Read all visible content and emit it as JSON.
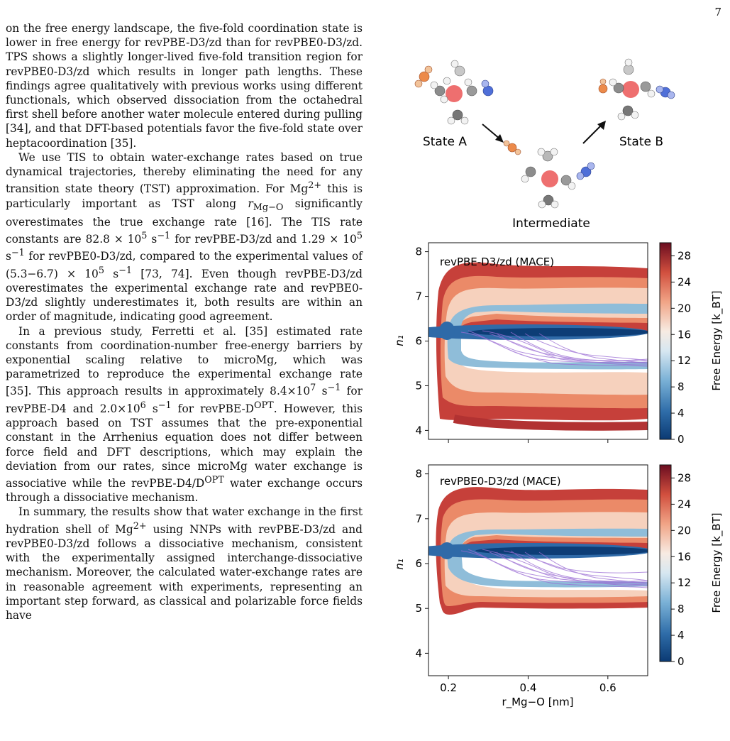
{
  "page_number": "7",
  "paragraphs": [
    "on the free energy landscape, the five-fold coordination state is lower in free energy for revPBE-D3/zd than for revPBE0-D3/zd. TPS shows a slightly longer-lived five-fold transition region for revPBE0-D3/zd which results in longer path lengths. These findings agree qualitatively with previous works using different functionals, which observed dissociation from the octahedral first shell before another water molecule entered during pulling [34], and that DFT-based potentials favor the five-fold state over heptacoordination [35].",
    "We use TIS to obtain water-exchange rates based on true dynamical trajectories, thereby eliminating the need for any transition state theory (TST) approximation. For Mg²⁺ this is particularly important as TST along r_Mg−O significantly overestimates the true exchange rate [16]. The TIS rate constants are 82.8 × 10⁵ s⁻¹ for revPBE-D3/zd and 1.29 × 10⁵ s⁻¹ for revPBE0-D3/zd, compared to the experimental values of (5.3−6.7) × 10⁵ s⁻¹ [73, 74]. Even though revPBE-D3/zd overestimates the experimental exchange rate and revPBE0-D3/zd slightly underestimates it, both results are within an order of magnitude, indicating good agreement.",
    "In a previous study, Ferretti et al. [35] estimated rate constants from coordination-number free-energy barriers by exponential scaling relative to microMg, which was parametrized to reproduce the experimental exchange rate [35]. This approach results in approximately 8.4×10⁷ s⁻¹ for revPBE-D4 and 2.0×10⁶ s⁻¹ for revPBE-D^OPT. However, this approach based on TST assumes that the pre-exponential constant in the Arrhenius equation does not differ between force field and DFT descriptions, which may explain the deviation from our rates, since microMg water exchange is associative while the revPBE-D4/D^OPT water exchange occurs through a dissociative mechanism.",
    "In summary, the results show that water exchange in the first hydration shell of Mg²⁺ using NNPs with revPBE-D3/zd and revPBE0-D3/zd follows a dissociative mechanism, consistent with the experimentally assigned interchange-dissociative mechanism. Moreover, the calculated water-exchange rates are in reasonable agreement with experiments, representing an important step forward, as classical and polarizable force fields have"
  ],
  "scheme": {
    "state_a": "State A",
    "state_b": "State B",
    "intermediate": "Intermediate"
  },
  "chart_data": [
    {
      "type": "heatmap",
      "title": "revPBE-D3/zd (MACE)",
      "xlabel": "",
      "ylabel": "n₁",
      "xlim": [
        0.15,
        0.7
      ],
      "ylim": [
        3.8,
        8.2
      ],
      "x_ticks": [
        0.2,
        0.4,
        0.6
      ],
      "y_ticks": [
        4,
        5,
        6,
        7,
        8
      ],
      "x_tick_labels_shown": false,
      "colorbar": {
        "label": "Free Energy [k_BT]",
        "range": [
          0,
          30
        ],
        "ticks": [
          0,
          4,
          8,
          12,
          16,
          20,
          24,
          28
        ]
      },
      "basin": {
        "n1": 6.1
      },
      "trajectory_band": {
        "n1_low": 5.2,
        "n1_high": 6.1
      }
    },
    {
      "type": "heatmap",
      "title": "revPBE0-D3/zd (MACE)",
      "xlabel": "r_Mg−O [nm]",
      "ylabel": "n₁",
      "xlim": [
        0.15,
        0.7
      ],
      "ylim": [
        3.5,
        8.2
      ],
      "x_ticks": [
        0.2,
        0.4,
        0.6
      ],
      "y_ticks": [
        4,
        5,
        6,
        7,
        8
      ],
      "x_tick_labels_shown": true,
      "colorbar": {
        "label": "Free Energy [k_BT]",
        "range": [
          0,
          30
        ],
        "ticks": [
          0,
          4,
          8,
          12,
          16,
          20,
          24,
          28
        ]
      },
      "basin": {
        "n1": 6.2
      },
      "trajectory_band": {
        "n1_low": 5.3,
        "n1_high": 6.2
      }
    }
  ]
}
